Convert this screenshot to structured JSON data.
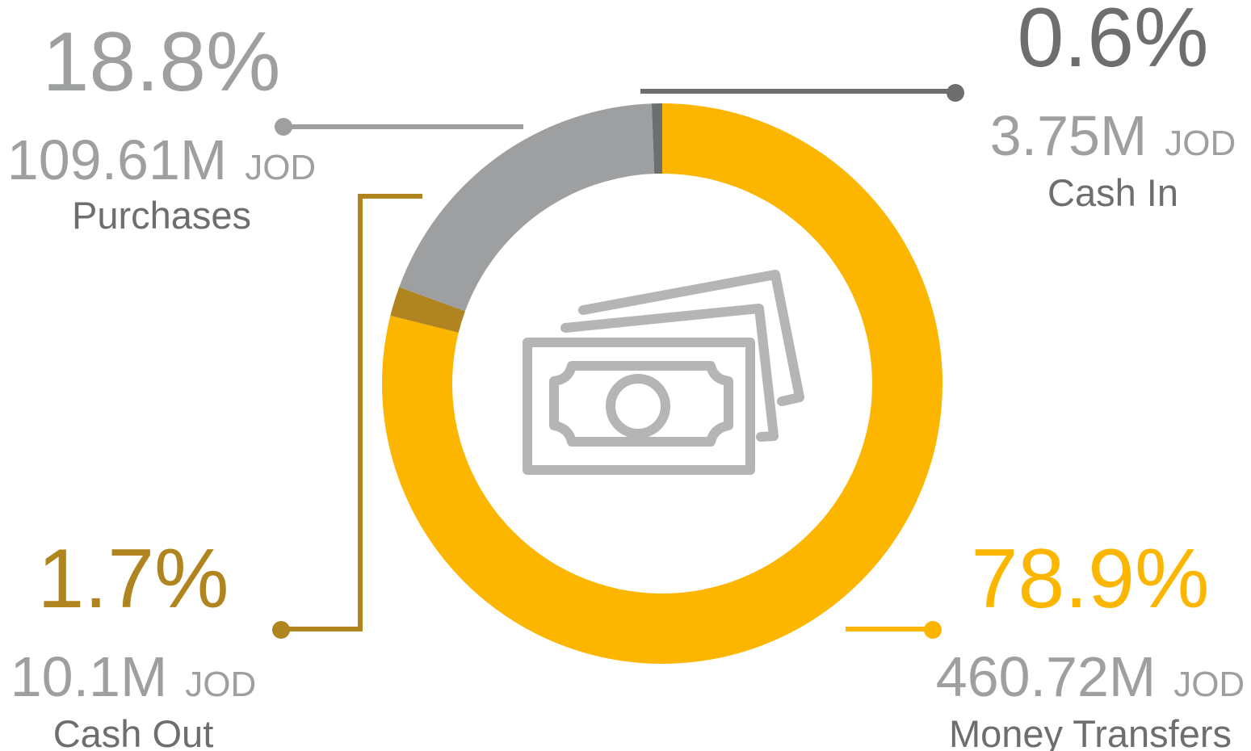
{
  "chart_data": {
    "type": "donut",
    "categories": [
      "Money Transfers",
      "Cash Out",
      "Purchases",
      "Cash In"
    ],
    "values": [
      78.9,
      1.7,
      18.8,
      0.6
    ],
    "value_labels": [
      "78.9%",
      "1.7%",
      "18.8%",
      "0.6%"
    ],
    "amounts": [
      "460.72M",
      "10.1M",
      "109.61M",
      "3.75M"
    ],
    "unit": "JOD",
    "colors": [
      "#fdb600",
      "#b0841e",
      "#9d9fa0",
      "#6d6e70"
    ]
  }
}
